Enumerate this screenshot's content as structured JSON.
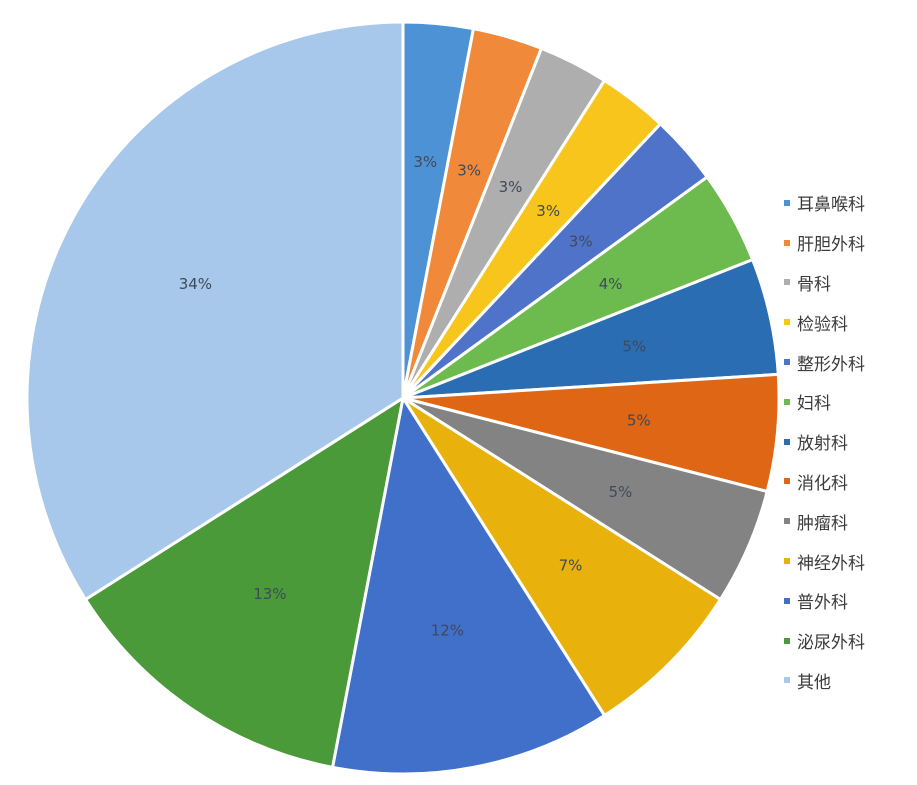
{
  "chart_data": {
    "type": "pie",
    "start_angle_deg": 0,
    "direction": "clockwise",
    "legend_position": "right",
    "slices": [
      {
        "name": "耳鼻喉科",
        "value": 3,
        "label": "3%",
        "color": "#4e92d6"
      },
      {
        "name": "肝胆外科",
        "value": 3,
        "label": "3%",
        "color": "#f08a3a"
      },
      {
        "name": "骨科",
        "value": 3,
        "label": "3%",
        "color": "#aeaeae"
      },
      {
        "name": "检验科",
        "value": 3,
        "label": "3%",
        "color": "#f7c51c"
      },
      {
        "name": "整形外科",
        "value": 3,
        "label": "3%",
        "color": "#4f73c9"
      },
      {
        "name": "妇科",
        "value": 4,
        "label": "4%",
        "color": "#6dbb4e"
      },
      {
        "name": "放射科",
        "value": 5,
        "label": "5%",
        "color": "#2a6db3"
      },
      {
        "name": "消化科",
        "value": 5,
        "label": "5%",
        "color": "#de6614"
      },
      {
        "name": "肿瘤科",
        "value": 5,
        "label": "5%",
        "color": "#838383"
      },
      {
        "name": "神经外科",
        "value": 7,
        "label": "7%",
        "color": "#e8b10c"
      },
      {
        "name": "普外科",
        "value": 12,
        "label": "12%",
        "color": "#4070c9"
      },
      {
        "name": "泌尿外科",
        "value": 13,
        "label": "13%",
        "color": "#4a9a3a"
      },
      {
        "name": "其他",
        "value": 34,
        "label": "34%",
        "color": "#a7c8ea"
      }
    ]
  }
}
